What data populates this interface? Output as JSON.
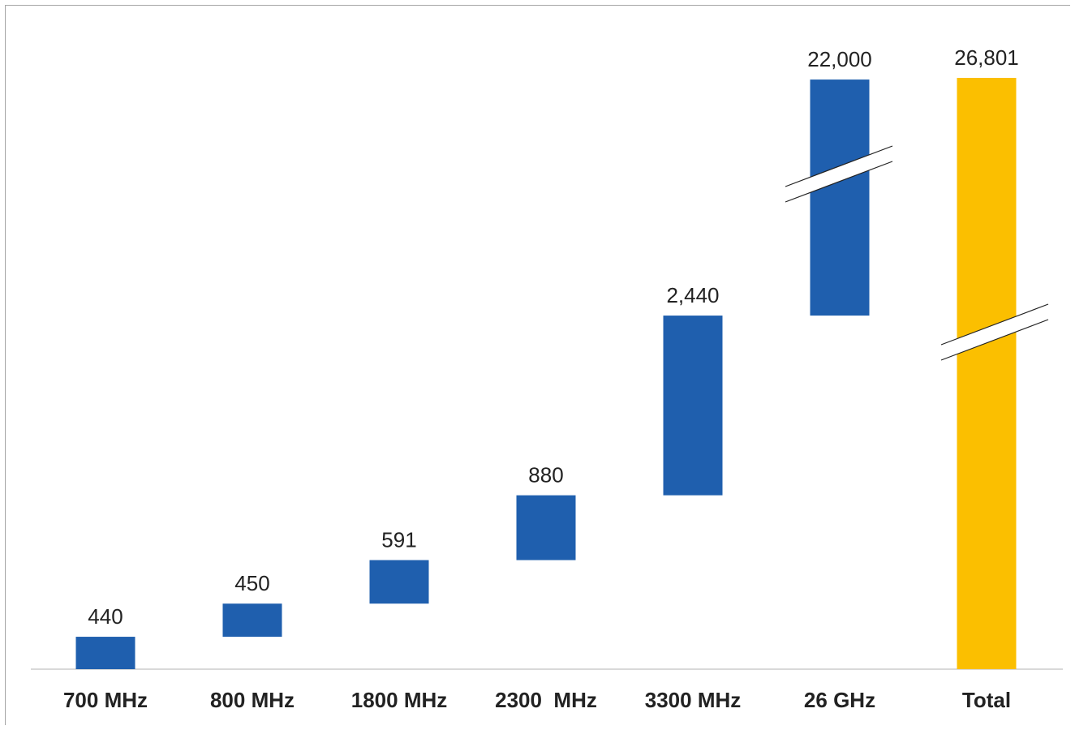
{
  "chart_data": {
    "type": "bar",
    "subtype": "waterfall",
    "categories": [
      "700 MHz",
      "800 MHz",
      "1800 MHz",
      "2300  MHz",
      "3300 MHz",
      "26 GHz",
      "Total"
    ],
    "values": [
      440,
      450,
      591,
      880,
      2440,
      22000,
      26801
    ],
    "value_labels": [
      "440",
      "450",
      "591",
      "880",
      "2,440",
      "22,000",
      "26,801"
    ],
    "kinds": [
      "increment",
      "increment",
      "increment",
      "increment",
      "increment",
      "increment",
      "total"
    ],
    "axis_breaks": [
      "26 GHz",
      "Total"
    ],
    "title": "",
    "xlabel": "",
    "ylabel": "",
    "grid": false,
    "colors": {
      "increment": "#1f5fae",
      "total": "#fbbf00",
      "axis": "#d9d9d9",
      "frame": "#a6a6a6",
      "text": "#222222"
    }
  }
}
